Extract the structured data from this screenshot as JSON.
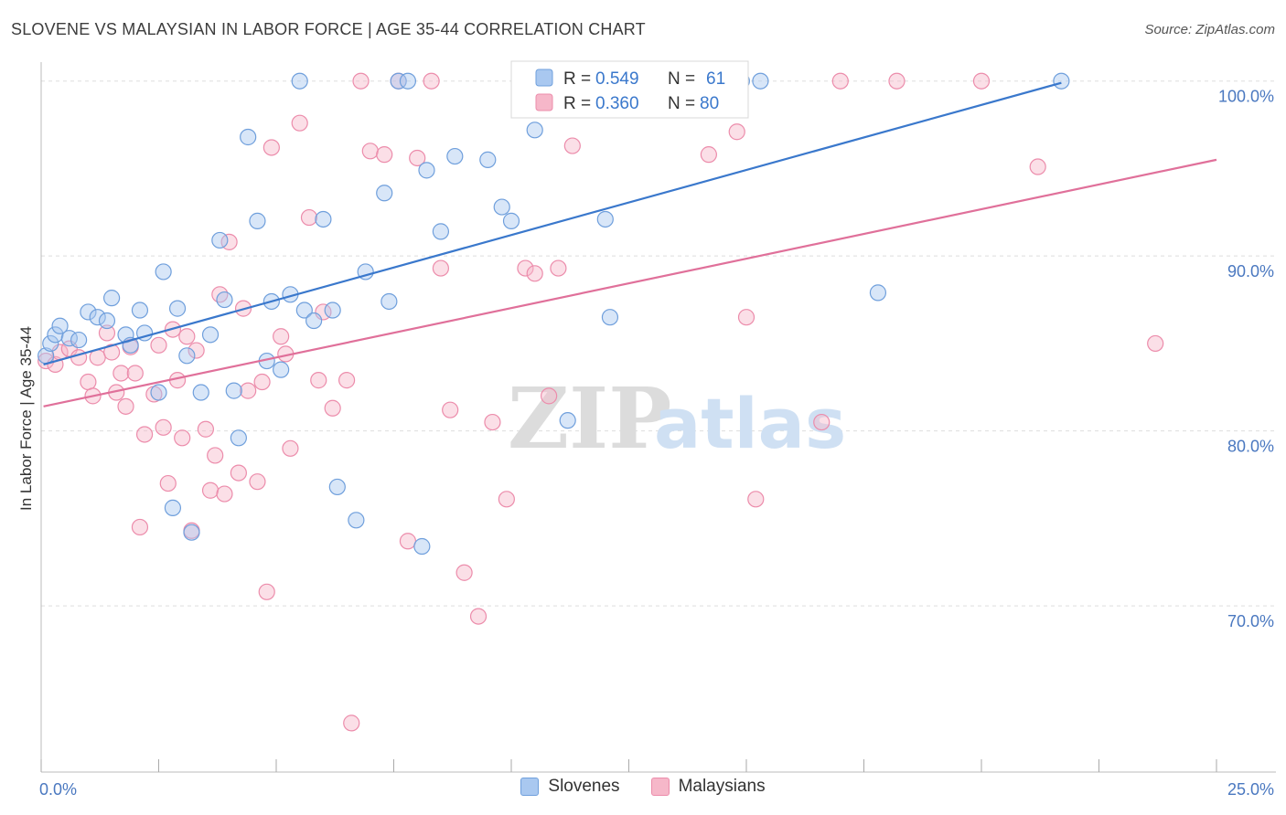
{
  "header": {
    "title": "SLOVENE VS MALAYSIAN IN LABOR FORCE | AGE 35-44 CORRELATION CHART",
    "source": "Source: ZipAtlas.com"
  },
  "watermark": {
    "zip": "ZIP",
    "atlas": "atlas"
  },
  "colors": {
    "blue_fill": "#a9c8f0",
    "blue_stroke": "#6f9fdc",
    "blue_line": "#3a78cc",
    "pink_fill": "#f6b7c9",
    "pink_stroke": "#ec8cab",
    "pink_line": "#e0709a",
    "axis_text": "#4a78c0",
    "grid": "#dddddd"
  },
  "legend": {
    "r_label": "R =",
    "n_label": "N =",
    "entries": [
      {
        "r": "0.549",
        "n": "61"
      },
      {
        "r": "0.360",
        "n": "80"
      }
    ]
  },
  "bottom_legend": [
    "Slovenes",
    "Malaysians"
  ],
  "chart_data": {
    "type": "scatter",
    "title": "SLOVENE VS MALAYSIAN IN LABOR FORCE | AGE 35-44 CORRELATION CHART",
    "ylabel": "In Labor Force | Age 35-44",
    "xlabel": "",
    "xlim": [
      0,
      25
    ],
    "ylim": [
      60.5,
      101.5
    ],
    "x_tick_labels": [
      "0.0%",
      "25.0%"
    ],
    "y_ticks": [
      {
        "value": 100,
        "label": "100.0%"
      },
      {
        "value": 90,
        "label": "90.0%"
      },
      {
        "value": 80,
        "label": "80.0%"
      },
      {
        "value": 70,
        "label": "70.0%"
      }
    ],
    "grid": true,
    "legend_position": "top-center",
    "series": [
      {
        "name": "Slovenes",
        "r": 0.549,
        "n": 61,
        "trend": {
          "x": [
            0.05,
            21.7
          ],
          "y": [
            83.8,
            99.9
          ]
        },
        "points": [
          [
            0.1,
            84.3
          ],
          [
            0.2,
            85.0
          ],
          [
            0.3,
            85.5
          ],
          [
            0.4,
            86.0
          ],
          [
            0.6,
            85.3
          ],
          [
            0.8,
            85.2
          ],
          [
            1.0,
            86.8
          ],
          [
            1.2,
            86.5
          ],
          [
            1.4,
            86.3
          ],
          [
            1.5,
            87.6
          ],
          [
            1.8,
            85.5
          ],
          [
            1.9,
            84.9
          ],
          [
            2.1,
            86.9
          ],
          [
            2.2,
            85.6
          ],
          [
            2.5,
            82.2
          ],
          [
            2.6,
            89.1
          ],
          [
            2.8,
            75.6
          ],
          [
            2.9,
            87.0
          ],
          [
            3.1,
            84.3
          ],
          [
            3.2,
            74.2
          ],
          [
            3.4,
            82.2
          ],
          [
            3.6,
            85.5
          ],
          [
            3.8,
            90.9
          ],
          [
            3.9,
            87.5
          ],
          [
            4.1,
            82.3
          ],
          [
            4.2,
            79.6
          ],
          [
            4.4,
            96.8
          ],
          [
            4.6,
            92.0
          ],
          [
            4.8,
            84.0
          ],
          [
            4.9,
            87.4
          ],
          [
            5.1,
            83.5
          ],
          [
            5.3,
            87.8
          ],
          [
            5.5,
            100.0
          ],
          [
            5.6,
            86.9
          ],
          [
            5.8,
            86.3
          ],
          [
            6.0,
            92.1
          ],
          [
            6.2,
            86.9
          ],
          [
            6.3,
            76.8
          ],
          [
            6.7,
            74.9
          ],
          [
            6.9,
            89.1
          ],
          [
            7.3,
            93.6
          ],
          [
            7.4,
            87.4
          ],
          [
            7.6,
            100.0
          ],
          [
            7.8,
            100.0
          ],
          [
            8.1,
            73.4
          ],
          [
            8.2,
            94.9
          ],
          [
            8.5,
            91.4
          ],
          [
            8.8,
            95.7
          ],
          [
            9.5,
            95.5
          ],
          [
            9.8,
            92.8
          ],
          [
            10.0,
            92.0
          ],
          [
            10.5,
            97.2
          ],
          [
            11.2,
            80.6
          ],
          [
            11.7,
            100.0
          ],
          [
            14.2,
            100.0
          ],
          [
            14.9,
            100.0
          ],
          [
            15.3,
            100.0
          ],
          [
            12.0,
            92.1
          ],
          [
            12.1,
            86.5
          ],
          [
            17.8,
            87.9
          ],
          [
            21.7,
            100.0
          ]
        ]
      },
      {
        "name": "Malaysians",
        "r": 0.36,
        "n": 80,
        "trend": {
          "x": [
            0.05,
            25.0
          ],
          "y": [
            81.4,
            95.5
          ]
        },
        "points": [
          [
            0.1,
            84.0
          ],
          [
            0.3,
            83.8
          ],
          [
            0.4,
            84.5
          ],
          [
            0.6,
            84.7
          ],
          [
            0.8,
            84.2
          ],
          [
            1.0,
            82.8
          ],
          [
            1.1,
            82.0
          ],
          [
            1.2,
            84.2
          ],
          [
            1.4,
            85.6
          ],
          [
            1.5,
            84.5
          ],
          [
            1.6,
            82.2
          ],
          [
            1.7,
            83.3
          ],
          [
            1.8,
            81.4
          ],
          [
            1.9,
            84.8
          ],
          [
            2.0,
            83.3
          ],
          [
            2.1,
            74.5
          ],
          [
            2.2,
            79.8
          ],
          [
            2.4,
            82.1
          ],
          [
            2.5,
            84.9
          ],
          [
            2.6,
            80.2
          ],
          [
            2.7,
            77.0
          ],
          [
            2.8,
            85.8
          ],
          [
            2.9,
            82.9
          ],
          [
            3.0,
            79.6
          ],
          [
            3.1,
            85.4
          ],
          [
            3.2,
            74.3
          ],
          [
            3.3,
            84.6
          ],
          [
            3.5,
            80.1
          ],
          [
            3.6,
            76.6
          ],
          [
            3.7,
            78.6
          ],
          [
            3.8,
            87.8
          ],
          [
            3.9,
            76.4
          ],
          [
            4.0,
            90.8
          ],
          [
            4.2,
            77.6
          ],
          [
            4.3,
            87.0
          ],
          [
            4.4,
            82.3
          ],
          [
            4.6,
            77.1
          ],
          [
            4.7,
            82.8
          ],
          [
            4.8,
            70.8
          ],
          [
            4.9,
            96.2
          ],
          [
            5.1,
            85.4
          ],
          [
            5.2,
            84.4
          ],
          [
            5.3,
            79.0
          ],
          [
            5.5,
            97.6
          ],
          [
            5.7,
            92.2
          ],
          [
            5.9,
            82.9
          ],
          [
            6.0,
            86.8
          ],
          [
            6.2,
            81.3
          ],
          [
            6.5,
            82.9
          ],
          [
            6.6,
            63.3
          ],
          [
            6.8,
            100.0
          ],
          [
            7.0,
            96.0
          ],
          [
            7.3,
            95.8
          ],
          [
            7.6,
            100.0
          ],
          [
            7.8,
            73.7
          ],
          [
            8.0,
            95.6
          ],
          [
            8.3,
            100.0
          ],
          [
            8.5,
            89.3
          ],
          [
            8.7,
            81.2
          ],
          [
            9.0,
            71.9
          ],
          [
            9.3,
            69.4
          ],
          [
            9.6,
            80.5
          ],
          [
            9.9,
            76.1
          ],
          [
            10.3,
            89.3
          ],
          [
            10.5,
            89.0
          ],
          [
            10.8,
            82.0
          ],
          [
            11.0,
            89.3
          ],
          [
            11.3,
            96.3
          ],
          [
            12.5,
            100.0
          ],
          [
            13.0,
            100.0
          ],
          [
            14.2,
            95.8
          ],
          [
            14.8,
            97.1
          ],
          [
            15.0,
            86.5
          ],
          [
            15.2,
            76.1
          ],
          [
            16.6,
            80.5
          ],
          [
            17.0,
            100.0
          ],
          [
            18.2,
            100.0
          ],
          [
            20.0,
            100.0
          ],
          [
            21.2,
            95.1
          ],
          [
            23.7,
            85.0
          ]
        ]
      }
    ]
  }
}
